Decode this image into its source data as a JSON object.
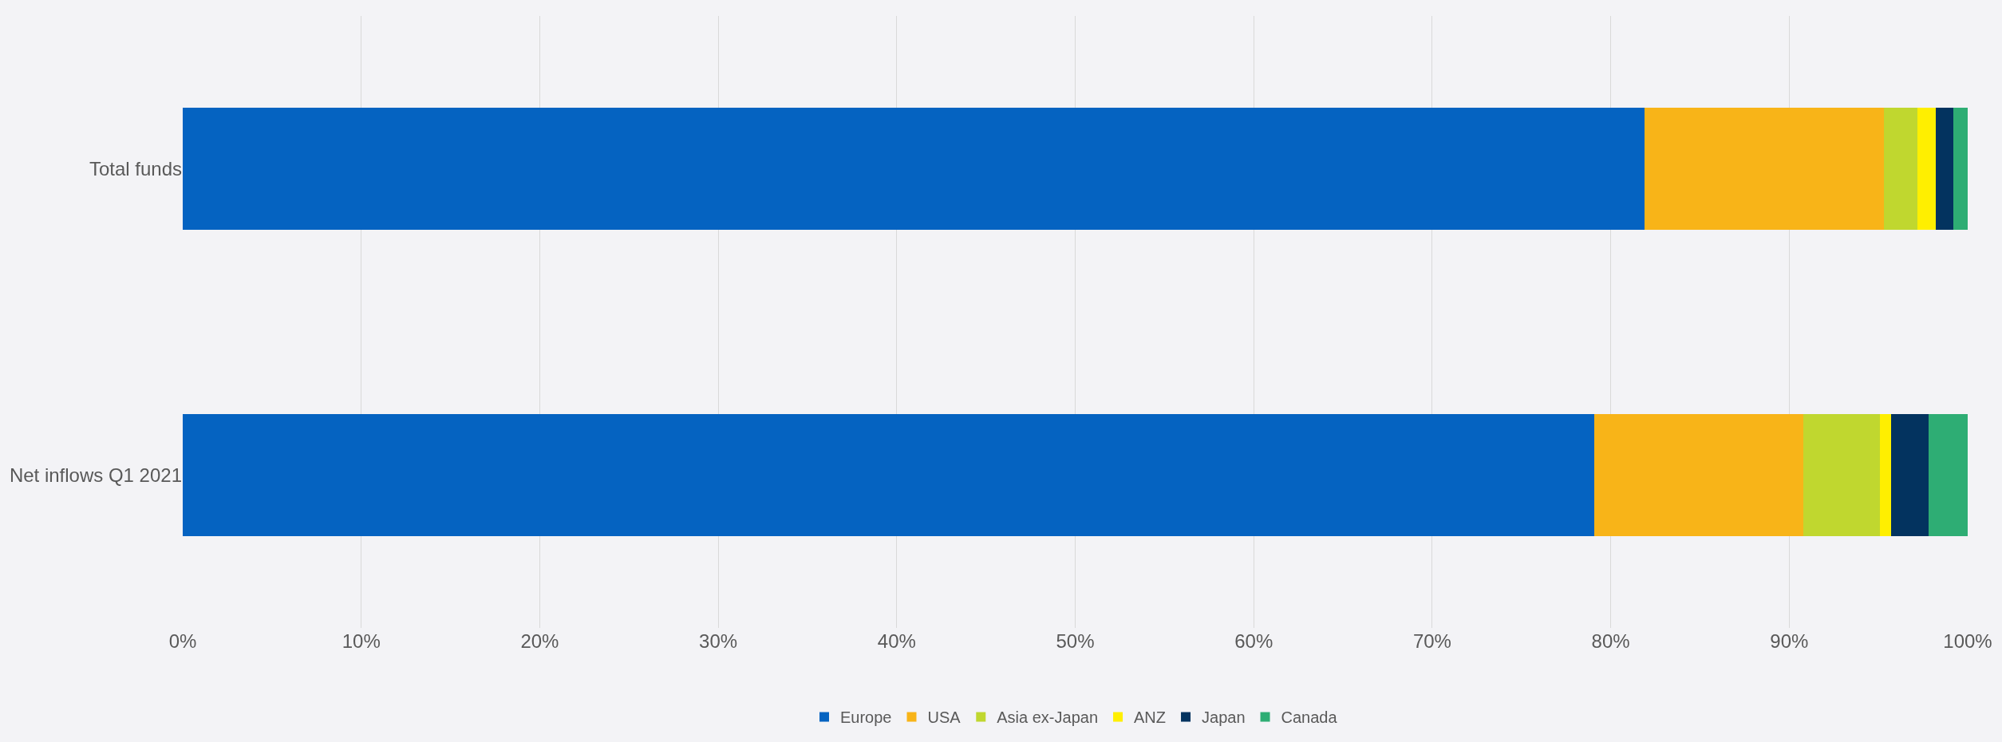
{
  "chart_data": {
    "type": "bar",
    "orientation": "horizontal",
    "stacked": true,
    "categories": [
      "Total funds",
      "Net inflows Q1 2021"
    ],
    "series": [
      {
        "name": "Europe",
        "color": "#0563c1",
        "values": [
          81.9,
          79.1
        ]
      },
      {
        "name": "USA",
        "color": "#f8b418",
        "values": [
          13.4,
          11.7
        ]
      },
      {
        "name": "Asia ex-Japan",
        "color": "#c0d72f",
        "values": [
          1.9,
          4.3
        ]
      },
      {
        "name": "ANZ",
        "color": "#ffef00",
        "values": [
          1.0,
          0.6
        ]
      },
      {
        "name": "Japan",
        "color": "#03335f",
        "values": [
          1.0,
          2.1
        ]
      },
      {
        "name": "Canada",
        "color": "#2ead74",
        "values": [
          0.8,
          2.2
        ]
      }
    ],
    "xlim": [
      0,
      100
    ],
    "xticks": [
      {
        "value": 0,
        "label": "0%"
      },
      {
        "value": 10,
        "label": "10%"
      },
      {
        "value": 20,
        "label": "20%"
      },
      {
        "value": 30,
        "label": "30%"
      },
      {
        "value": 40,
        "label": "40%"
      },
      {
        "value": 50,
        "label": "50%"
      },
      {
        "value": 60,
        "label": "60%"
      },
      {
        "value": 70,
        "label": "70%"
      },
      {
        "value": 80,
        "label": "80%"
      },
      {
        "value": 90,
        "label": "90%"
      },
      {
        "value": 100,
        "label": "100%"
      }
    ],
    "grid": "x",
    "legend": "bottom"
  }
}
